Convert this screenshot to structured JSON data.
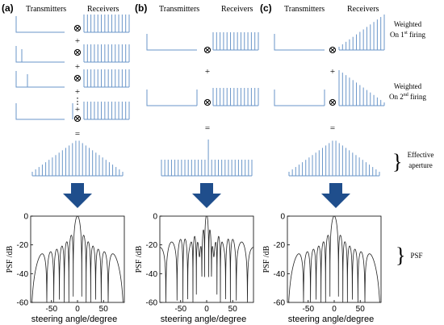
{
  "panels": [
    {
      "letter": "(a)",
      "transmitters_label": "Transmitters",
      "receivers_label": "Receivers",
      "operators": [
        "⊗",
        "+",
        "⊗",
        "+",
        "⊗",
        "+",
        "⋮",
        "+",
        "⊗",
        "="
      ],
      "chart_label": "(a)"
    },
    {
      "letter": "(b)",
      "transmitters_label": "Transmitters",
      "receivers_label": "Receivers",
      "operators": [
        "⊗",
        "+",
        "⊗",
        "="
      ],
      "chart_label": "(b)"
    },
    {
      "letter": "(c)",
      "transmitters_label": "Transmitters",
      "receivers_label": "Receivers",
      "operators": [
        "⊗",
        "+",
        "⊗",
        "="
      ],
      "chart_label": "(c)"
    }
  ],
  "side_labels": {
    "weighted_first_line1": "Weighted",
    "weighted_first_line2": "On 1",
    "weighted_first_sup": "st",
    "weighted_first_line3": " firing",
    "weighted_second_line1": "Weighted",
    "weighted_second_line2": "On 2",
    "weighted_second_sup": "nd",
    "weighted_second_line3": " firing",
    "effective_line1": "Effective",
    "effective_line2": "aperture",
    "psf": "PSF",
    "brace": "}"
  },
  "colors": {
    "line": "#6a96c9",
    "arrow": "#1f4e8c",
    "curve": "#222222"
  },
  "chart_data": [
    {
      "type": "line",
      "panel": "(a)",
      "ylabel": "PSF /dB",
      "xlabel": "steering angle/degree",
      "xlim": [
        -90,
        90
      ],
      "ylim": [
        -60,
        0
      ],
      "xticks": [
        -50,
        0,
        50
      ],
      "yticks": [
        0,
        -20,
        -40,
        -60
      ],
      "main_lobe_peak": 0,
      "sidelobe_envelope_edge_db": -27,
      "null_depth_db": -50
    },
    {
      "type": "line",
      "panel": "(b)",
      "ylabel": "PSF /dB",
      "xlabel": "steering angle/degree",
      "xlim": [
        -90,
        90
      ],
      "ylim": [
        -60,
        0
      ],
      "xticks": [
        -50,
        0,
        50
      ],
      "yticks": [
        0,
        -20,
        -40,
        -60
      ],
      "main_lobe_peak": 0,
      "sidelobe_envelope_edge_db": -24,
      "null_depth_db": -47
    },
    {
      "type": "line",
      "panel": "(c)",
      "ylabel": "PSF /dB",
      "xlabel": "steering angle/degree",
      "xlim": [
        -90,
        90
      ],
      "ylim": [
        -60,
        0
      ],
      "xticks": [
        -50,
        0,
        50
      ],
      "yticks": [
        0,
        -20,
        -40,
        -60
      ],
      "main_lobe_peak": 0,
      "sidelobe_envelope_edge_db": -27,
      "null_depth_db": -50
    }
  ]
}
